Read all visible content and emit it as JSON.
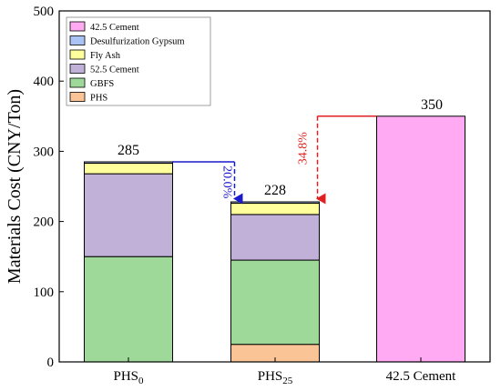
{
  "chart_data": {
    "type": "bar",
    "stacked": true,
    "ylabel": "Materials Cost (CNY/Ton)",
    "ylim": [
      0,
      500
    ],
    "yticks": [
      0,
      100,
      200,
      300,
      400,
      500
    ],
    "categories": [
      {
        "name": "PHS",
        "sub": "0"
      },
      {
        "name": "PHS",
        "sub": "25"
      },
      {
        "name": "42.5 Cement",
        "sub": ""
      }
    ],
    "series": [
      {
        "name": "PHS",
        "color": "#fbc497",
        "values": [
          0,
          25,
          0
        ]
      },
      {
        "name": "GBFS",
        "color": "#9fd99a",
        "values": [
          150,
          120,
          0
        ]
      },
      {
        "name": "52.5 Cement",
        "color": "#c1b1d8",
        "values": [
          118,
          65,
          0
        ]
      },
      {
        "name": "Fly Ash",
        "color": "#ffff9b",
        "values": [
          15,
          16,
          0
        ]
      },
      {
        "name": "Desulfurization Gypsum",
        "color": "#a9c3f5",
        "values": [
          2,
          2,
          0
        ]
      },
      {
        "name": "42.5 Cement",
        "color": "#ffaaf2",
        "values": [
          0,
          0,
          350
        ]
      }
    ],
    "legend_placement": "top-left",
    "legend_order": [
      5,
      4,
      3,
      2,
      1,
      0
    ],
    "totals": [
      "285",
      "228",
      "350"
    ],
    "annotations": [
      {
        "text": "20.0%",
        "color": "#1a1acc",
        "from": 0,
        "to": 1,
        "level": 285
      },
      {
        "text": "34.8%",
        "color": "#e02020",
        "from": 2,
        "to": 1,
        "level": 350
      }
    ]
  }
}
